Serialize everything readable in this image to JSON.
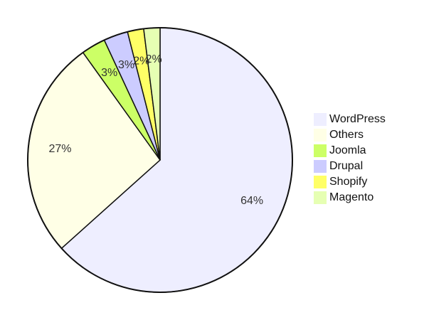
{
  "chart_data": {
    "type": "pie",
    "categories": [
      "WordPress",
      "Others",
      "Joomla",
      "Drupal",
      "Shopify",
      "Magento"
    ],
    "values": [
      64,
      27,
      3,
      3,
      2,
      2
    ],
    "value_labels": [
      "64%",
      "27%",
      "3%",
      "3%",
      "2%",
      "2%"
    ],
    "colors": [
      "#eeeeff",
      "#ffffe6",
      "#ccff66",
      "#ccccff",
      "#ffff66",
      "#e6ffb3"
    ],
    "legend": "right"
  }
}
